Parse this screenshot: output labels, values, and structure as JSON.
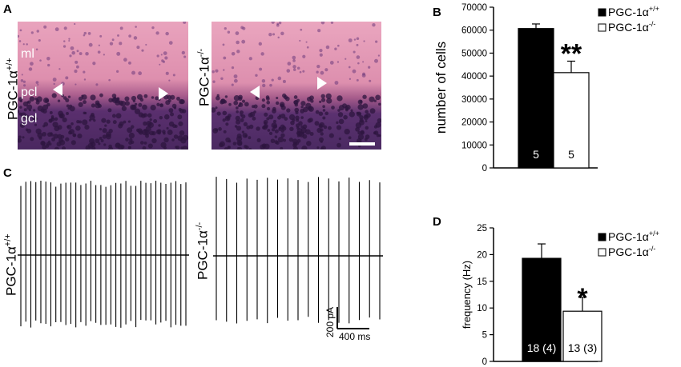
{
  "panels": {
    "A": {
      "label": "A",
      "wt_genotype": "PGC-1α",
      "wt_sup": "+/+",
      "ko_genotype": "PGC-1α",
      "ko_sup": "-/-",
      "layers": {
        "ml": "ml",
        "pcl": "pcl",
        "gcl": "gcl"
      },
      "colors": {
        "molecular_layer": "#e9a3bd",
        "granular_layer": "#5a2f6e"
      }
    },
    "B": {
      "label": "B"
    },
    "C": {
      "label": "C",
      "wt_genotype": "PGC-1α",
      "wt_sup": "+/+",
      "ko_genotype": "PGC-1α",
      "ko_sup": "-/-",
      "scale_y": "200 pA",
      "scale_x": "400 ms",
      "wt_spike_count": 34,
      "ko_spike_count": 17
    },
    "D": {
      "label": "D"
    }
  },
  "chart_data": [
    {
      "panel": "B",
      "type": "bar",
      "categories": [
        "PGC-1α+/+",
        "PGC-1α-/-"
      ],
      "values": [
        60700,
        41500
      ],
      "errors": [
        2000,
        5000
      ],
      "n_labels": [
        "5",
        "5"
      ],
      "significance": "**",
      "title": "",
      "xlabel": "",
      "ylabel": "number of cells",
      "ylim": [
        0,
        70000
      ],
      "yticks": [
        "0",
        "10000",
        "20000",
        "30000",
        "40000",
        "50000",
        "60000",
        "70000"
      ],
      "legend": [
        {
          "name": "PGC-1α",
          "sup": "+/+",
          "fill": "#000000"
        },
        {
          "name": "PGC-1α",
          "sup": "-/-",
          "fill": "#ffffff"
        }
      ],
      "legend_position": "top-right",
      "grid": false
    },
    {
      "panel": "D",
      "type": "bar",
      "categories": [
        "PGC-1α+/+",
        "PGC-1α-/-"
      ],
      "values": [
        19.3,
        9.4
      ],
      "errors": [
        2.7,
        2.6
      ],
      "n_labels": [
        "18 (4)",
        "13 (3)"
      ],
      "significance": "*",
      "title": "",
      "xlabel": "",
      "ylabel": "frequency (Hz)",
      "ylim": [
        0,
        25
      ],
      "yticks": [
        "0",
        "5",
        "10",
        "15",
        "20",
        "25"
      ],
      "legend": [
        {
          "name": "PGC-1α",
          "sup": "+/+",
          "fill": "#000000"
        },
        {
          "name": "PGC-1α",
          "sup": "-/-",
          "fill": "#ffffff"
        }
      ],
      "legend_position": "top-right",
      "grid": false
    }
  ]
}
